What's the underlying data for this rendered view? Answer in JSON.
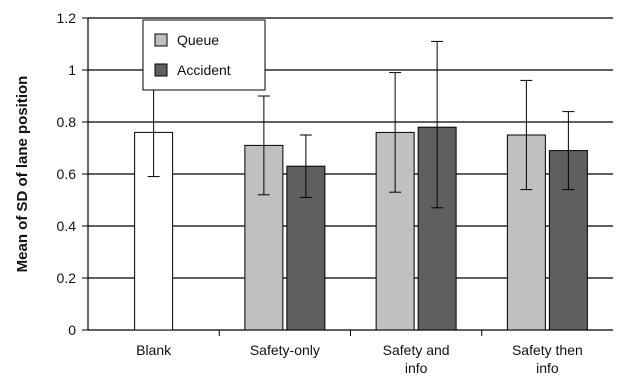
{
  "chart_data": {
    "type": "bar",
    "title": "",
    "xlabel": "",
    "ylabel": "Mean of SD of lane position",
    "ylim": [
      0,
      1.2
    ],
    "yticks": [
      "0",
      "0.2",
      "0.4",
      "0.6",
      "0.8",
      "1",
      "1.2"
    ],
    "grid": true,
    "legend_position": "top-left",
    "categories": [
      {
        "lines": [
          "Blank"
        ]
      },
      {
        "lines": [
          "Safety-only"
        ]
      },
      {
        "lines": [
          "Safety and",
          "info"
        ]
      },
      {
        "lines": [
          "Safety then",
          "info"
        ]
      }
    ],
    "series": [
      {
        "name": "Queue",
        "color": "#c0c0c0",
        "values": [
          null,
          0.71,
          0.76,
          0.75
        ],
        "error_low": [
          null,
          0.52,
          0.53,
          0.54
        ],
        "error_high": [
          null,
          0.9,
          0.99,
          0.96
        ]
      },
      {
        "name": "Accident",
        "color": "#5f5f5f",
        "values": [
          null,
          0.63,
          0.78,
          0.69
        ],
        "error_low": [
          null,
          0.51,
          0.47,
          0.54
        ],
        "error_high": [
          null,
          0.75,
          1.11,
          0.84
        ]
      }
    ],
    "baseline": {
      "category_index": 0,
      "color": "#ffffff",
      "value": 0.76,
      "error_low": 0.59,
      "error_high": 0.95
    }
  }
}
